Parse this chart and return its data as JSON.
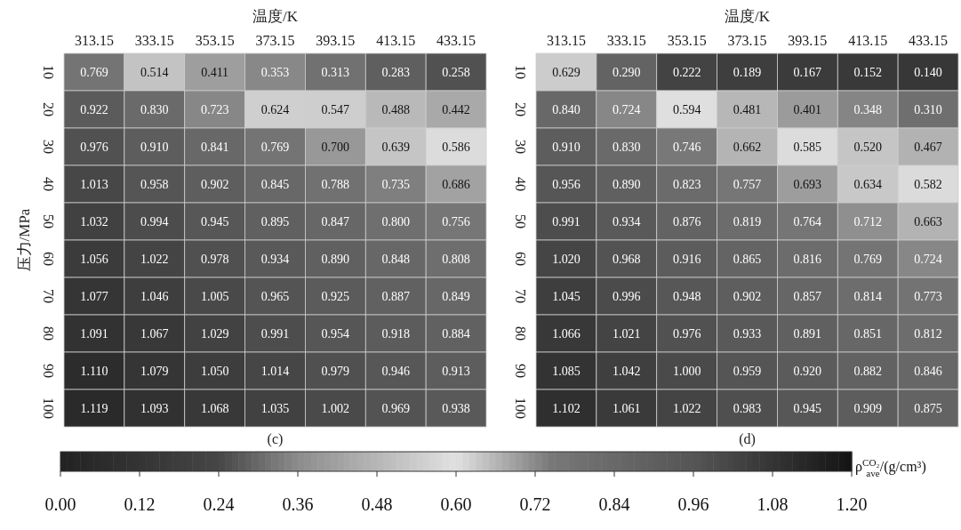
{
  "chart_data": [
    {
      "type": "heatmap",
      "title": "(c)",
      "xlabel": "温度/K",
      "ylabel": "压力/MPa",
      "clabel": "ρ$^{CO₂}$$_{ave}$/(g/cm³)",
      "categories": [
        "313.15",
        "333.15",
        "353.15",
        "373.15",
        "393.15",
        "413.15",
        "433.15"
      ],
      "y_categories": [
        "10",
        "20",
        "30",
        "40",
        "50",
        "60",
        "70",
        "80",
        "90",
        "100"
      ],
      "cells": [
        [
          0.769,
          0.514,
          0.411,
          0.353,
          0.313,
          0.283,
          0.258
        ],
        [
          0.922,
          0.83,
          0.723,
          0.624,
          0.547,
          0.488,
          0.442
        ],
        [
          0.976,
          0.91,
          0.841,
          0.769,
          0.7,
          0.639,
          0.586
        ],
        [
          1.013,
          0.958,
          0.902,
          0.845,
          0.788,
          0.735,
          0.686
        ],
        [
          1.032,
          0.994,
          0.945,
          0.895,
          0.847,
          0.8,
          0.756
        ],
        [
          1.056,
          1.022,
          0.978,
          0.934,
          0.89,
          0.848,
          0.808
        ],
        [
          1.077,
          1.046,
          1.005,
          0.965,
          0.925,
          0.887,
          0.849
        ],
        [
          1.091,
          1.067,
          1.029,
          0.991,
          0.954,
          0.918,
          0.884
        ],
        [
          1.11,
          1.079,
          1.05,
          1.014,
          0.979,
          0.946,
          0.913
        ],
        [
          1.119,
          1.093,
          1.068,
          1.035,
          1.002,
          0.969,
          0.938
        ]
      ],
      "cell_labels": [
        [
          "0.769",
          "0.514",
          "0.411",
          "0.353",
          "0.313",
          "0.283",
          "0.258"
        ],
        [
          "0.922",
          "0.830",
          "0.723",
          "0.624",
          "0.547",
          "0.488",
          "0.442"
        ],
        [
          "0.976",
          "0.910",
          "0.841",
          "0.769",
          "0.700",
          "0.639",
          "0.586"
        ],
        [
          "1.013",
          "0.958",
          "0.902",
          "0.845",
          "0.788",
          "0.735",
          "0.686"
        ],
        [
          "1.032",
          "0.994",
          "0.945",
          "0.895",
          "0.847",
          "0.800",
          "0.756"
        ],
        [
          "1.056",
          "1.022",
          "0.978",
          "0.934",
          "0.890",
          "0.848",
          "0.808"
        ],
        [
          "1.077",
          "1.046",
          "1.005",
          "0.965",
          "0.925",
          "0.887",
          "0.849"
        ],
        [
          "1.091",
          "1.067",
          "1.029",
          "0.991",
          "0.954",
          "0.918",
          "0.884"
        ],
        [
          "1.110",
          "1.079",
          "1.050",
          "1.014",
          "0.979",
          "0.946",
          "0.913"
        ],
        [
          "1.119",
          "1.093",
          "1.068",
          "1.035",
          "1.002",
          "0.969",
          "0.938"
        ]
      ],
      "data_labels": true,
      "clim": [
        0,
        1.2
      ],
      "cticks": [
        {
          "value": 0,
          "label": "0.00"
        },
        {
          "value": 0.12,
          "label": "0.12"
        },
        {
          "value": 0.24,
          "label": "0.24"
        },
        {
          "value": 0.36,
          "label": "0.36"
        },
        {
          "value": 0.48,
          "label": "0.48"
        },
        {
          "value": 0.6,
          "label": "0.60"
        },
        {
          "value": 0.72,
          "label": "0.72"
        },
        {
          "value": 0.84,
          "label": "0.84"
        },
        {
          "value": 0.96,
          "label": "0.96"
        },
        {
          "value": 1.08,
          "label": "1.08"
        },
        {
          "value": 1.2,
          "label": "1.20"
        }
      ]
    },
    {
      "type": "heatmap",
      "title": "(d)",
      "xlabel": "温度/K",
      "categories": [
        "313.15",
        "333.15",
        "353.15",
        "373.15",
        "393.15",
        "413.15",
        "433.15"
      ],
      "y_categories": [
        "10",
        "20",
        "30",
        "40",
        "50",
        "60",
        "70",
        "80",
        "90",
        "100"
      ],
      "cells": [
        [
          0.629,
          0.29,
          0.222,
          0.189,
          0.167,
          0.152,
          0.14
        ],
        [
          0.84,
          0.724,
          0.594,
          0.481,
          0.401,
          0.348,
          0.31
        ],
        [
          0.91,
          0.83,
          0.746,
          0.662,
          0.585,
          0.52,
          0.467
        ],
        [
          0.956,
          0.89,
          0.823,
          0.757,
          0.693,
          0.634,
          0.582
        ],
        [
          0.991,
          0.934,
          0.876,
          0.819,
          0.764,
          0.712,
          0.663
        ],
        [
          1.02,
          0.968,
          0.916,
          0.865,
          0.816,
          0.769,
          0.724
        ],
        [
          1.045,
          0.996,
          0.948,
          0.902,
          0.857,
          0.814,
          0.773
        ],
        [
          1.066,
          1.021,
          0.976,
          0.933,
          0.891,
          0.851,
          0.812
        ],
        [
          1.085,
          1.042,
          1.0,
          0.959,
          0.92,
          0.882,
          0.846
        ],
        [
          1.102,
          1.061,
          1.022,
          0.983,
          0.945,
          0.909,
          0.875
        ]
      ],
      "cell_labels": [
        [
          "0.629",
          "0.290",
          "0.222",
          "0.189",
          "0.167",
          "0.152",
          "0.140"
        ],
        [
          "0.840",
          "0.724",
          "0.594",
          "0.481",
          "0.401",
          "0.348",
          "0.310"
        ],
        [
          "0.910",
          "0.830",
          "0.746",
          "0.662",
          "0.585",
          "0.520",
          "0.467"
        ],
        [
          "0.956",
          "0.890",
          "0.823",
          "0.757",
          "0.693",
          "0.634",
          "0.582"
        ],
        [
          "0.991",
          "0.934",
          "0.876",
          "0.819",
          "0.764",
          "0.712",
          "0.663"
        ],
        [
          "1.020",
          "0.968",
          "0.916",
          "0.865",
          "0.816",
          "0.769",
          "0.724"
        ],
        [
          "1.045",
          "0.996",
          "0.948",
          "0.902",
          "0.857",
          "0.814",
          "0.773"
        ],
        [
          "1.066",
          "1.021",
          "0.976",
          "0.933",
          "0.891",
          "0.851",
          "0.812"
        ],
        [
          "1.085",
          "1.042",
          "1.000",
          "0.959",
          "0.920",
          "0.882",
          "0.846"
        ],
        [
          "1.102",
          "1.061",
          "1.022",
          "0.983",
          "0.945",
          "0.909",
          "0.875"
        ]
      ],
      "data_labels": true
    }
  ]
}
